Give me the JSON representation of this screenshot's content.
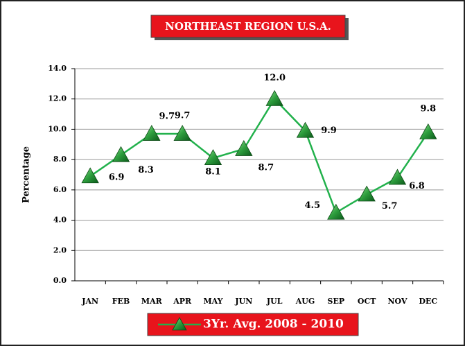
{
  "chart_data": {
    "type": "line",
    "title": "NORTHEAST REGION U.S.A.",
    "ylabel": "Percentage",
    "categories": [
      "JAN",
      "FEB",
      "MAR",
      "APR",
      "MAY",
      "JUN",
      "JUL",
      "AUG",
      "SEP",
      "OCT",
      "NOV",
      "DEC"
    ],
    "series": [
      {
        "name": "3Yr. Avg. 2008 - 2010",
        "color": "#22b14c",
        "values": [
          6.9,
          8.3,
          9.7,
          9.7,
          8.1,
          8.7,
          12.0,
          9.9,
          4.5,
          5.7,
          6.8,
          9.8
        ],
        "value_labels": [
          "6.9",
          "8.3",
          "9.7",
          "9.7",
          "8.1",
          "8.7",
          "12.0",
          "9.9",
          "4.5",
          "5.7",
          "6.8",
          "9.8"
        ]
      }
    ],
    "ylim": [
      0,
      14
    ],
    "yticks": [
      {
        "value": 0,
        "label": "0.0"
      },
      {
        "value": 2,
        "label": "2.0"
      },
      {
        "value": 4,
        "label": "4.0"
      },
      {
        "value": 6,
        "label": "6.0"
      },
      {
        "value": 8,
        "label": "8.0"
      },
      {
        "value": 10,
        "label": "10.0"
      },
      {
        "value": 12,
        "label": "12.0"
      },
      {
        "value": 14,
        "label": "14.0"
      }
    ],
    "grid": true,
    "legend": "bottom"
  }
}
